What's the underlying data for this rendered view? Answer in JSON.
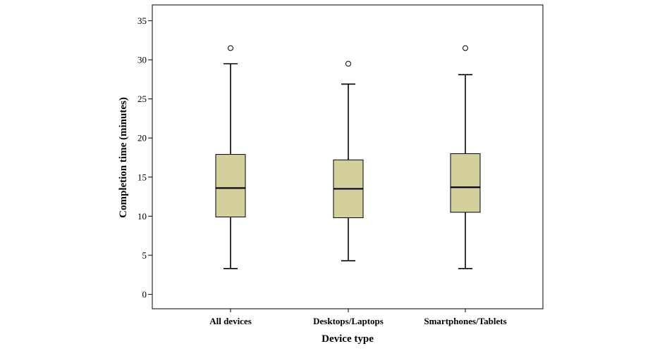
{
  "chart_data": {
    "type": "boxplot",
    "title": "",
    "xlabel": "Device type",
    "ylabel": "Completion time (minutes)",
    "ylim": [
      -2,
      36
    ],
    "yticks": [
      0,
      5,
      10,
      15,
      20,
      25,
      30,
      35
    ],
    "categories": [
      "All devices",
      "Desktops/Laptops",
      "Smartphones/Tablets"
    ],
    "boxes": [
      {
        "category": "All devices",
        "whisker_low": 3.3,
        "q1": 9.9,
        "median": 13.6,
        "q3": 17.9,
        "whisker_high": 29.5,
        "outliers": [
          31.5
        ]
      },
      {
        "category": "Desktops/Laptops",
        "whisker_low": 4.3,
        "q1": 9.8,
        "median": 13.5,
        "q3": 17.2,
        "whisker_high": 26.9,
        "outliers": [
          29.5
        ]
      },
      {
        "category": "Smartphones/Tablets",
        "whisker_low": 3.3,
        "q1": 10.5,
        "median": 13.7,
        "q3": 18.0,
        "whisker_high": 28.1,
        "outliers": [
          31.5
        ]
      }
    ],
    "colors": {
      "box_fill": "#d4d09c",
      "stroke": "#000000",
      "background": "#ffffff"
    },
    "grid": false,
    "legend": "none"
  }
}
